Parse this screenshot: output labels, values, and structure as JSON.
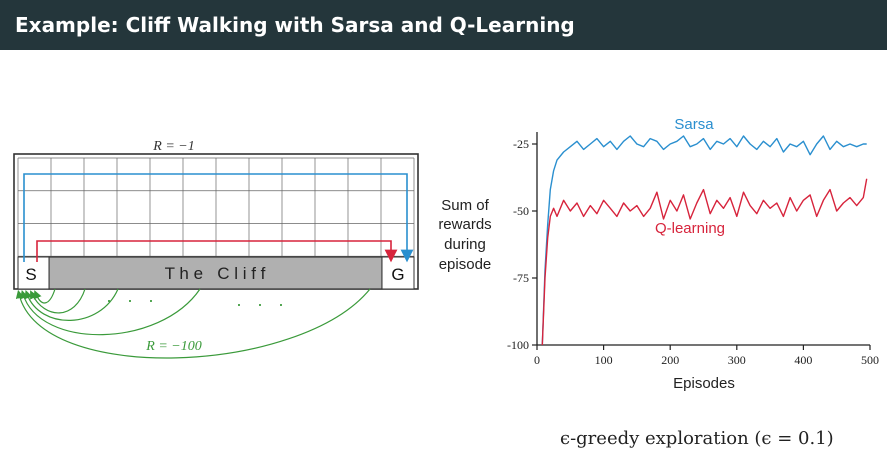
{
  "header": {
    "title": "Example: Cliff Walking with Sarsa and Q-Learning"
  },
  "colors": {
    "header_bg": "#24363b",
    "sarsa": "#2a8fcf",
    "qlearning": "#d7243c",
    "cliff_fill": "#b0b0b0",
    "cliff_arrows": "#3a9a3a"
  },
  "gridworld": {
    "reward_step": "R = −1",
    "reward_cliff": "R = −100",
    "start": "S",
    "goal": "G",
    "cliff_label": "T h e   C l i f f",
    "dots_left": "·   ·   ·",
    "dots_right": "·   ·   ·"
  },
  "chart_data": {
    "type": "line",
    "xlabel": "Episodes",
    "ylabel": [
      "Sum of",
      "rewards",
      "during",
      "episode"
    ],
    "xlim": [
      0,
      500
    ],
    "ylim": [
      -100,
      -20
    ],
    "xticks": [
      0,
      100,
      200,
      300,
      400,
      500
    ],
    "xtick_labels": [
      "0",
      "100",
      "200",
      "300",
      "400",
      "500"
    ],
    "yticks": [
      -25,
      -50,
      -75,
      -100
    ],
    "ytick_labels": [
      "-25",
      "-50",
      "-75",
      "-100"
    ],
    "grid": false,
    "series": [
      {
        "name": "Sarsa",
        "color": "#2a8fcf",
        "x": [
          8,
          12,
          16,
          20,
          25,
          30,
          40,
          50,
          60,
          70,
          80,
          90,
          100,
          110,
          120,
          130,
          140,
          150,
          160,
          170,
          180,
          190,
          200,
          210,
          220,
          230,
          240,
          250,
          260,
          270,
          280,
          290,
          300,
          310,
          320,
          330,
          340,
          350,
          360,
          370,
          380,
          390,
          400,
          410,
          420,
          430,
          440,
          450,
          460,
          470,
          480,
          490,
          495
        ],
        "y": [
          -100,
          -72,
          -55,
          -42,
          -35,
          -31,
          -28,
          -26,
          -24,
          -27,
          -25,
          -23,
          -26,
          -24,
          -27,
          -24,
          -22,
          -25,
          -26,
          -23,
          -24,
          -27,
          -25,
          -24,
          -22,
          -26,
          -25,
          -23,
          -27,
          -24,
          -25,
          -23,
          -26,
          -22,
          -25,
          -27,
          -24,
          -26,
          -23,
          -28,
          -25,
          -26,
          -24,
          -29,
          -25,
          -22,
          -27,
          -24,
          -26,
          -25,
          -26,
          -25,
          -25
        ]
      },
      {
        "name": "Q-learning",
        "color": "#d7243c",
        "x": [
          8,
          12,
          16,
          20,
          25,
          30,
          40,
          50,
          60,
          70,
          80,
          90,
          100,
          110,
          120,
          130,
          140,
          150,
          160,
          170,
          180,
          190,
          200,
          210,
          220,
          230,
          240,
          250,
          260,
          270,
          280,
          290,
          300,
          310,
          320,
          330,
          340,
          350,
          360,
          370,
          380,
          390,
          400,
          410,
          420,
          430,
          440,
          450,
          460,
          470,
          480,
          490,
          495
        ],
        "y": [
          -100,
          -75,
          -60,
          -52,
          -49,
          -52,
          -46,
          -50,
          -47,
          -52,
          -48,
          -51,
          -46,
          -49,
          -52,
          -47,
          -50,
          -48,
          -52,
          -49,
          -43,
          -53,
          -46,
          -50,
          -44,
          -53,
          -47,
          -42,
          -51,
          -46,
          -49,
          -45,
          -52,
          -43,
          -48,
          -51,
          -46,
          -49,
          -47,
          -52,
          -45,
          -50,
          -46,
          -44,
          -52,
          -46,
          -42,
          -50,
          -47,
          -45,
          -48,
          -45,
          -38
        ]
      }
    ]
  },
  "caption": "ϵ-greedy exploration (ϵ = 0.1)"
}
